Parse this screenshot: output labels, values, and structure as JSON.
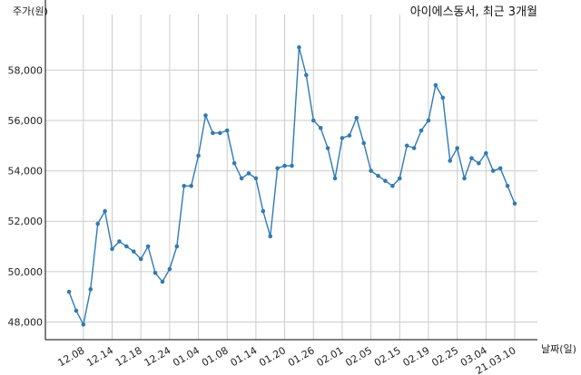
{
  "chart_data": {
    "type": "line",
    "title": "아이에스동서, 최근 3개월",
    "ylabel": "주가(원)",
    "xlabel": "날짜(일)",
    "ylim": [
      47300,
      59700
    ],
    "grid": true,
    "line_color": "#2f7bb5",
    "yticks": [
      48000,
      50000,
      52000,
      54000,
      56000,
      58000
    ],
    "ytick_labels": [
      "48,000",
      "50,000",
      "52,000",
      "54,000",
      "56,000",
      "58,000"
    ],
    "xticks": [
      {
        "index": 2,
        "label": "12.08"
      },
      {
        "index": 6,
        "label": "12.14"
      },
      {
        "index": 10,
        "label": "12.18"
      },
      {
        "index": 14,
        "label": "12.24"
      },
      {
        "index": 18,
        "label": "01.04"
      },
      {
        "index": 22,
        "label": "01.08"
      },
      {
        "index": 26,
        "label": "01.14"
      },
      {
        "index": 30,
        "label": "01.20"
      },
      {
        "index": 34,
        "label": "01.26"
      },
      {
        "index": 38,
        "label": "02.01"
      },
      {
        "index": 42,
        "label": "02.05"
      },
      {
        "index": 46,
        "label": "02.15"
      },
      {
        "index": 50,
        "label": "02.19"
      },
      {
        "index": 54,
        "label": "02.25"
      },
      {
        "index": 58,
        "label": "03.04"
      },
      {
        "index": 62,
        "label": "21.03.10"
      }
    ],
    "values": [
      49200,
      48450,
      47900,
      49300,
      51900,
      52400,
      50900,
      51200,
      51000,
      50800,
      50500,
      51000,
      49950,
      49600,
      50100,
      51000,
      53400,
      53400,
      54600,
      56200,
      55500,
      55500,
      55600,
      54300,
      53700,
      53900,
      53700,
      52400,
      51400,
      54100,
      54200,
      54200,
      58900,
      57800,
      56000,
      55700,
      54900,
      53700,
      55300,
      55400,
      56100,
      55100,
      54000,
      53800,
      53600,
      53400,
      53700,
      55000,
      54900,
      55600,
      56000,
      57400,
      56900,
      54400,
      54900,
      53700,
      54500,
      54300,
      54700,
      54000,
      54100,
      53400,
      52700
    ],
    "series": [
      {
        "values_ref": "values"
      }
    ]
  }
}
